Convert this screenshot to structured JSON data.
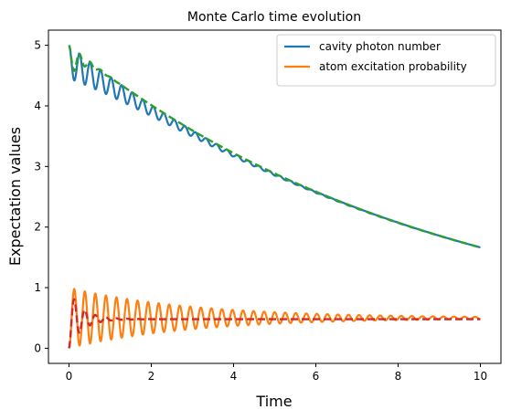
{
  "chart_data": {
    "type": "line",
    "title": "Monte Carlo time evolution",
    "xlabel": "Time",
    "ylabel": "Expectation values",
    "xlim": [
      -0.5,
      10.5
    ],
    "ylim": [
      -0.25,
      5.25
    ],
    "xticks": [
      0,
      2,
      4,
      6,
      8,
      10
    ],
    "yticks": [
      0,
      1,
      2,
      3,
      4,
      5
    ],
    "grid": false,
    "legend_position": "upper right",
    "series": [
      {
        "name": "cavity photon number",
        "color": "#1f77b4",
        "style": "solid",
        "in_legend": true,
        "model": {
          "start": 5.0,
          "decay": 0.11,
          "amp": 0.55,
          "amp_decay": 0.55,
          "freq": 3.9
        }
      },
      {
        "name": "atom excitation probability",
        "color": "#ff7f0e",
        "style": "solid",
        "in_legend": true,
        "model": {
          "mean": 0.5,
          "amp": 0.5,
          "amp_decay": 0.33,
          "freq": 3.9
        }
      },
      {
        "color": "#2ca02c",
        "style": "dashed",
        "in_legend": false,
        "model": {
          "start": 5.0,
          "decay": 0.11,
          "amp": 0.55,
          "amp_decay": 3.5,
          "freq": 3.9
        }
      },
      {
        "color": "#d62728",
        "style": "dashed",
        "in_legend": false,
        "model": {
          "mean": 0.48,
          "amp": 0.48,
          "amp_decay": 3.0,
          "freq": 3.9
        }
      }
    ]
  }
}
